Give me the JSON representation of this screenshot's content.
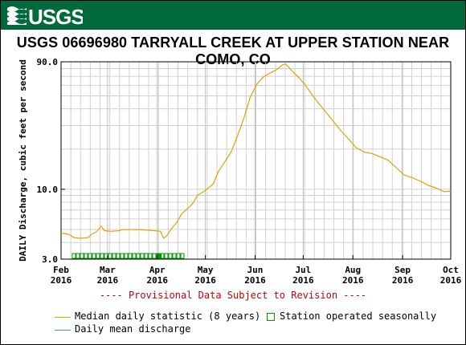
{
  "header": {
    "logo_text": "USGS",
    "banner_color": "#006a3d"
  },
  "chart_data": {
    "type": "line",
    "title": "USGS 06696980 TARRYALL CREEK AT UPPER STATION NEAR COMO, CO",
    "ylabel": "DAILY Discharge, cubic feet per second",
    "xlabel": "",
    "y_scale": "log",
    "ylim": [
      3.0,
      90.0
    ],
    "y_ticks": [
      {
        "value": 3.0,
        "label": "3.0"
      },
      {
        "value": 10.0,
        "label": "10.0"
      },
      {
        "value": 90.0,
        "label": "90.0"
      }
    ],
    "xlim": [
      "2016-02-01",
      "2016-10-01"
    ],
    "x_ticks": [
      {
        "date": "2016-02-01",
        "month": "Feb",
        "year": "2016"
      },
      {
        "date": "2016-03-01",
        "month": "Mar",
        "year": "2016"
      },
      {
        "date": "2016-04-01",
        "month": "Apr",
        "year": "2016"
      },
      {
        "date": "2016-05-01",
        "month": "May",
        "year": "2016"
      },
      {
        "date": "2016-06-01",
        "month": "Jun",
        "year": "2016"
      },
      {
        "date": "2016-07-01",
        "month": "Jul",
        "year": "2016"
      },
      {
        "date": "2016-08-01",
        "month": "Aug",
        "year": "2016"
      },
      {
        "date": "2016-09-01",
        "month": "Sep",
        "year": "2016"
      },
      {
        "date": "2016-10-01",
        "month": "Oct",
        "year": "2016"
      }
    ],
    "grid": true,
    "legend_placement": "bottom",
    "series": [
      {
        "name": "Median daily statistic (8 years)",
        "color": "#e6a000",
        "points": [
          [
            "2016-02-01",
            4.7
          ],
          [
            "2016-02-06",
            4.6
          ],
          [
            "2016-02-09",
            4.35
          ],
          [
            "2016-02-13",
            4.3
          ],
          [
            "2016-02-18",
            4.35
          ],
          [
            "2016-02-20",
            4.6
          ],
          [
            "2016-02-23",
            4.8
          ],
          [
            "2016-02-26",
            5.3
          ],
          [
            "2016-02-28",
            4.9
          ],
          [
            "2016-03-03",
            4.85
          ],
          [
            "2016-03-08",
            4.9
          ],
          [
            "2016-03-11",
            5.0
          ],
          [
            "2016-03-15",
            5.0
          ],
          [
            "2016-03-20",
            5.0
          ],
          [
            "2016-03-25",
            4.95
          ],
          [
            "2016-03-30",
            4.9
          ],
          [
            "2016-04-03",
            4.85
          ],
          [
            "2016-04-05",
            4.3
          ],
          [
            "2016-04-07",
            4.5
          ],
          [
            "2016-04-10",
            5.1
          ],
          [
            "2016-04-13",
            5.6
          ],
          [
            "2016-04-16",
            6.5
          ],
          [
            "2016-04-20",
            7.2
          ],
          [
            "2016-04-23",
            7.8
          ],
          [
            "2016-04-26",
            9.0
          ],
          [
            "2016-05-01",
            9.8
          ],
          [
            "2016-05-06",
            11.0
          ],
          [
            "2016-05-09",
            13.5
          ],
          [
            "2016-05-13",
            16.0
          ],
          [
            "2016-05-17",
            19.0
          ],
          [
            "2016-05-21",
            25.0
          ],
          [
            "2016-05-25",
            34.0
          ],
          [
            "2016-05-29",
            49.0
          ],
          [
            "2016-06-02",
            61.0
          ],
          [
            "2016-06-06",
            69.0
          ],
          [
            "2016-06-10",
            74.0
          ],
          [
            "2016-06-14",
            78.0
          ],
          [
            "2016-06-18",
            85.0
          ],
          [
            "2016-06-20",
            87.0
          ],
          [
            "2016-06-24",
            77.0
          ],
          [
            "2016-06-28",
            69.0
          ],
          [
            "2016-07-02",
            61.0
          ],
          [
            "2016-07-06",
            52.0
          ],
          [
            "2016-07-10",
            45.0
          ],
          [
            "2016-07-15",
            38.0
          ],
          [
            "2016-07-20",
            32.0
          ],
          [
            "2016-07-25",
            27.0
          ],
          [
            "2016-07-29",
            24.0
          ],
          [
            "2016-08-03",
            20.5
          ],
          [
            "2016-08-08",
            19.0
          ],
          [
            "2016-08-13",
            18.5
          ],
          [
            "2016-08-18",
            17.5
          ],
          [
            "2016-08-23",
            16.5
          ],
          [
            "2016-08-28",
            14.5
          ],
          [
            "2016-09-02",
            12.8
          ],
          [
            "2016-09-07",
            12.2
          ],
          [
            "2016-09-12",
            11.5
          ],
          [
            "2016-09-17",
            10.7
          ],
          [
            "2016-09-22",
            10.2
          ],
          [
            "2016-09-27",
            9.6
          ],
          [
            "2016-10-01",
            9.7
          ]
        ]
      }
    ],
    "legend": [
      {
        "label": "Median daily statistic (8 years)",
        "color": "#e6a000",
        "marker": "line"
      },
      {
        "label": "Station operated seasonally",
        "color": "#009900",
        "marker": "box"
      },
      {
        "label": "Daily mean discharge",
        "color": "#3399cc",
        "marker": "line"
      }
    ],
    "seasonal_bar": {
      "start": "2016-02-08",
      "end": "2016-04-18",
      "color": "#009900"
    }
  },
  "notes": {
    "provisional": "---- Provisional Data Subject to Revision ----"
  }
}
